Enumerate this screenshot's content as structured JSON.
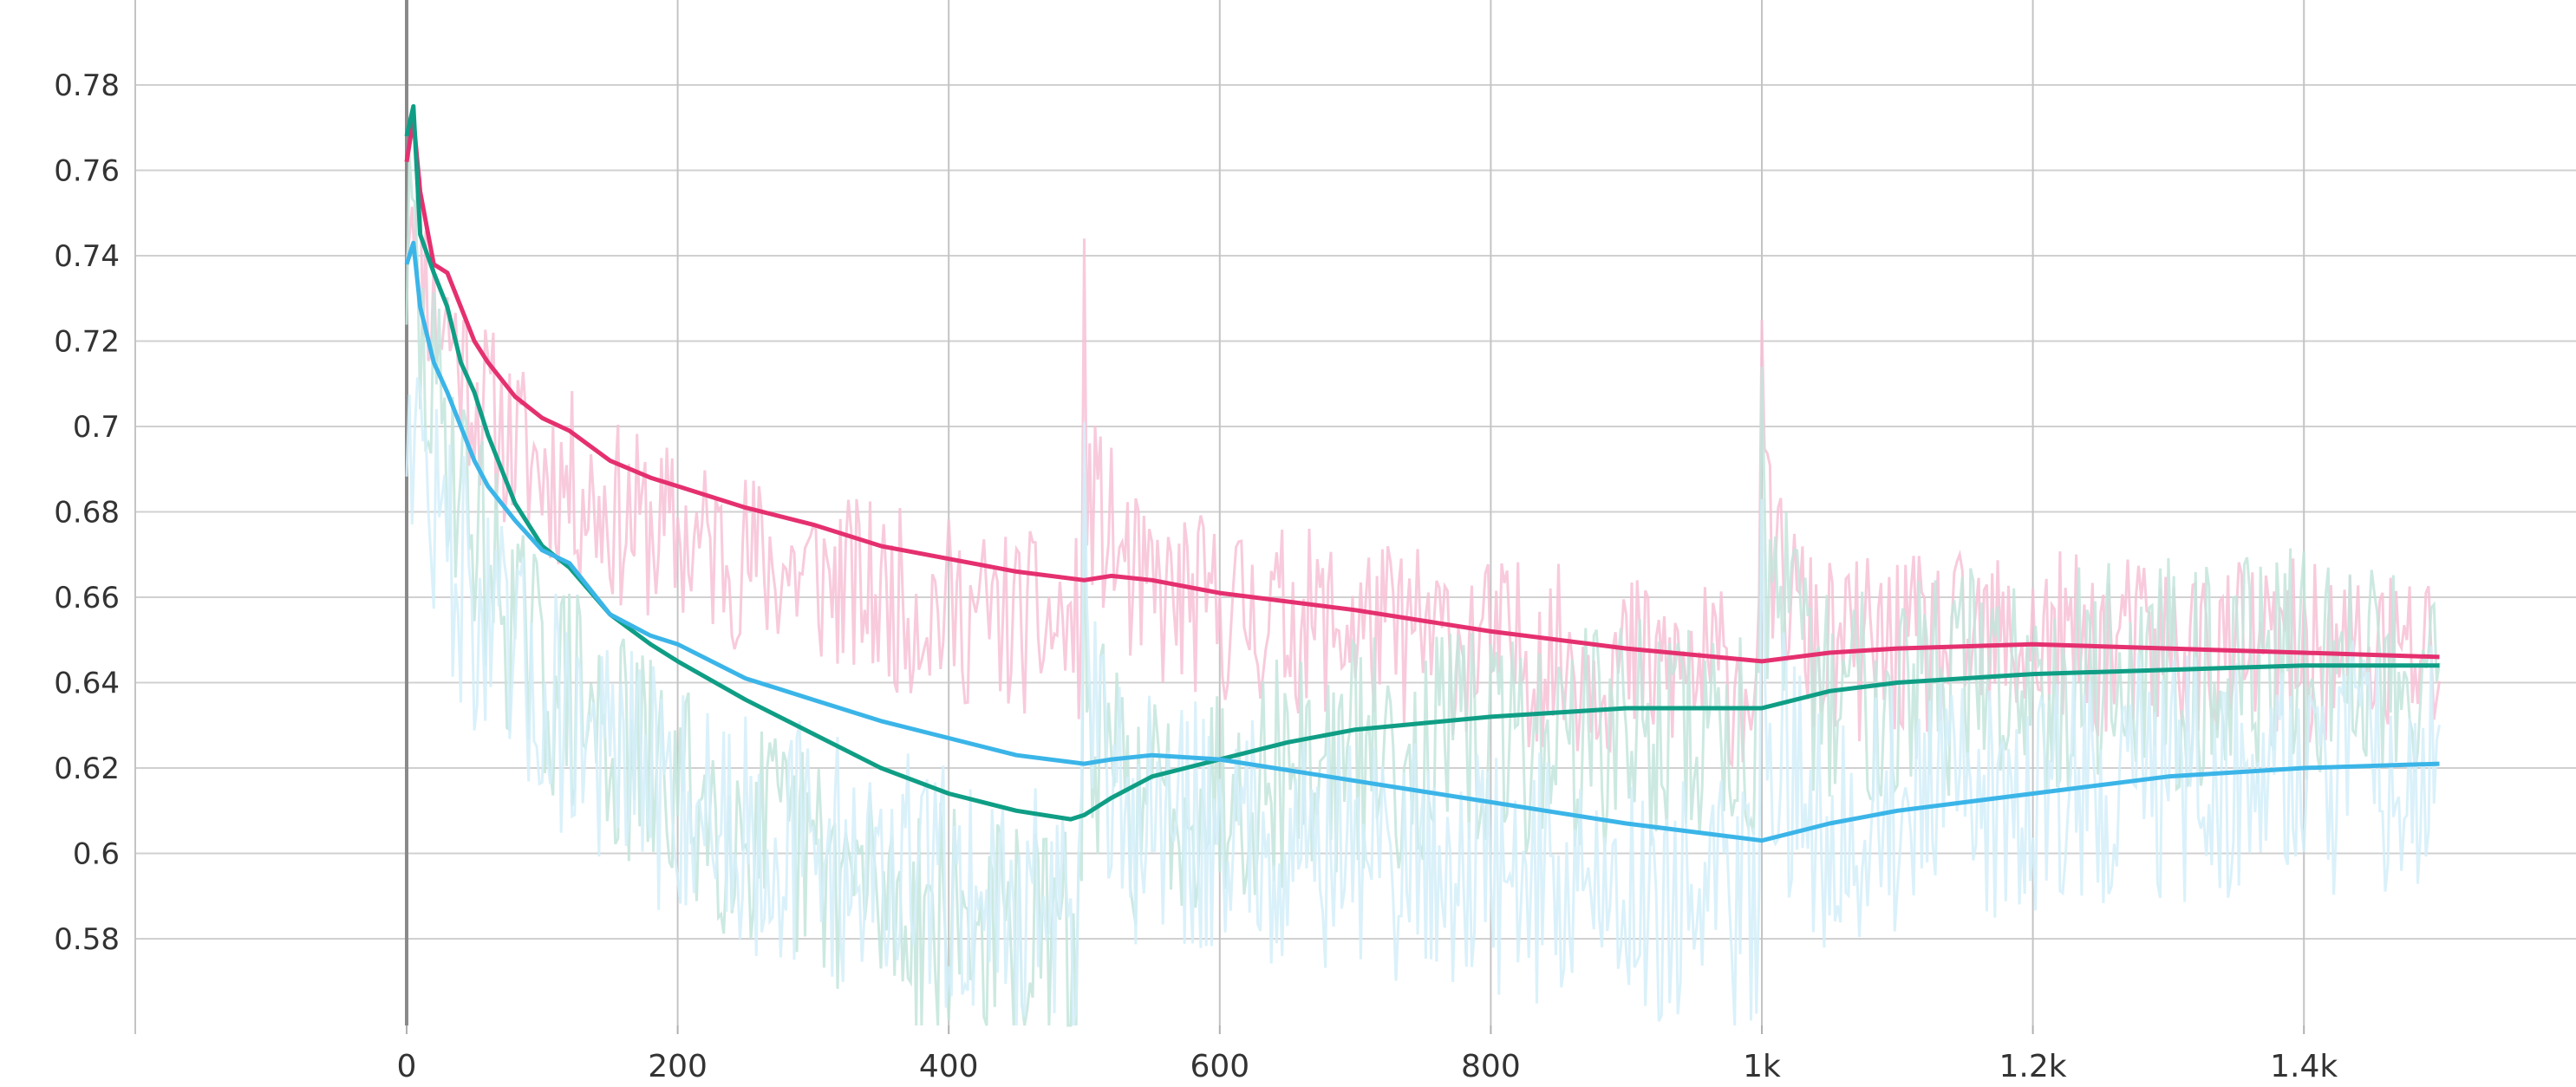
{
  "chart_data": {
    "type": "line",
    "title": "",
    "xlabel": "",
    "ylabel": "",
    "xlim": [
      -200,
      1600
    ],
    "ylim": [
      0.56,
      0.8
    ],
    "grid": true,
    "legend": "none",
    "x_ticks": [
      0,
      200,
      400,
      600,
      800,
      1000,
      1200,
      1400
    ],
    "x_tick_labels": [
      "0",
      "200",
      "400",
      "600",
      "800",
      "1k",
      "1.2k",
      "1.4k"
    ],
    "y_ticks": [
      0.58,
      0.6,
      0.62,
      0.64,
      0.66,
      0.68,
      0.7,
      0.72,
      0.74,
      0.76,
      0.78
    ],
    "y_tick_labels": [
      "0.58",
      "0.6",
      "0.62",
      "0.64",
      "0.66",
      "0.68",
      "0.7",
      "0.72",
      "0.74",
      "0.76",
      "0.78"
    ],
    "series": [
      {
        "color": "#e5306f",
        "raw_color": "#f7c1d6",
        "x": [
          0,
          5,
          10,
          20,
          30,
          40,
          50,
          60,
          80,
          100,
          120,
          150,
          180,
          200,
          250,
          300,
          350,
          400,
          450,
          500,
          520,
          550,
          600,
          700,
          800,
          900,
          1000,
          1050,
          1100,
          1200,
          1300,
          1400,
          1500
        ],
        "y": [
          0.762,
          0.772,
          0.755,
          0.738,
          0.736,
          0.728,
          0.72,
          0.715,
          0.707,
          0.702,
          0.699,
          0.692,
          0.688,
          0.686,
          0.681,
          0.677,
          0.672,
          0.669,
          0.666,
          0.664,
          0.665,
          0.664,
          0.661,
          0.657,
          0.652,
          0.648,
          0.645,
          0.647,
          0.648,
          0.649,
          0.648,
          0.647,
          0.646
        ]
      },
      {
        "color": "#0f9e85",
        "raw_color": "#c3e5dc",
        "x": [
          0,
          5,
          10,
          20,
          30,
          40,
          50,
          60,
          80,
          100,
          120,
          150,
          180,
          200,
          250,
          300,
          350,
          400,
          450,
          490,
          500,
          520,
          550,
          600,
          650,
          700,
          800,
          900,
          1000,
          1050,
          1100,
          1200,
          1300,
          1400,
          1500
        ],
        "y": [
          0.768,
          0.775,
          0.745,
          0.736,
          0.728,
          0.715,
          0.708,
          0.698,
          0.682,
          0.672,
          0.667,
          0.656,
          0.649,
          0.645,
          0.636,
          0.628,
          0.62,
          0.614,
          0.61,
          0.608,
          0.609,
          0.613,
          0.618,
          0.622,
          0.626,
          0.629,
          0.632,
          0.634,
          0.634,
          0.638,
          0.64,
          0.642,
          0.643,
          0.644,
          0.644
        ]
      },
      {
        "color": "#3bb5e8",
        "raw_color": "#d3eef9",
        "x": [
          0,
          5,
          10,
          20,
          30,
          40,
          50,
          60,
          80,
          100,
          120,
          150,
          180,
          200,
          250,
          300,
          350,
          400,
          450,
          500,
          520,
          550,
          600,
          700,
          800,
          900,
          1000,
          1050,
          1100,
          1200,
          1300,
          1400,
          1500
        ],
        "y": [
          0.738,
          0.743,
          0.728,
          0.715,
          0.708,
          0.7,
          0.692,
          0.686,
          0.678,
          0.671,
          0.668,
          0.656,
          0.651,
          0.649,
          0.641,
          0.636,
          0.631,
          0.627,
          0.623,
          0.621,
          0.622,
          0.623,
          0.622,
          0.617,
          0.612,
          0.607,
          0.603,
          0.607,
          0.61,
          0.614,
          0.618,
          0.62,
          0.621
        ]
      }
    ]
  }
}
